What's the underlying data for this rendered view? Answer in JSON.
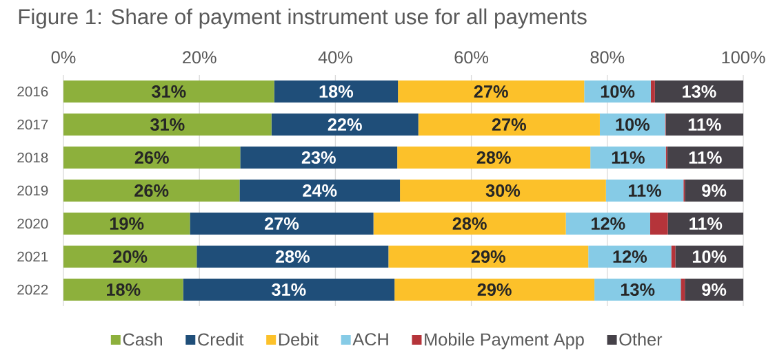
{
  "chart_data": {
    "type": "bar",
    "orientation": "horizontal",
    "stacked": true,
    "title": "Figure 1: Share of payment instrument use for all payments",
    "categories": [
      "2016",
      "2017",
      "2018",
      "2019",
      "2020",
      "2021",
      "2022"
    ],
    "series": [
      {
        "name": "Cash",
        "color": "#8DB03C",
        "values": [
          31.0,
          30.6,
          26.0,
          25.9,
          18.6,
          19.6,
          17.6
        ],
        "value_labels": [
          "31%",
          "31%",
          "26%",
          "26%",
          "19%",
          "20%",
          "18%"
        ]
      },
      {
        "name": "Credit",
        "color": "#1F4E79",
        "values": [
          18.2,
          21.6,
          23.1,
          23.6,
          27.0,
          28.2,
          31.1
        ],
        "value_labels": [
          "18%",
          "22%",
          "23%",
          "24%",
          "27%",
          "28%",
          "31%"
        ]
      },
      {
        "name": "Debit",
        "color": "#FCC12A",
        "values": [
          27.4,
          26.7,
          28.4,
          30.3,
          28.3,
          29.4,
          29.4
        ],
        "value_labels": [
          "27%",
          "27%",
          "28%",
          "30%",
          "28%",
          "29%",
          "29%"
        ]
      },
      {
        "name": "ACH",
        "color": "#86CBE6",
        "values": [
          9.8,
          9.6,
          11.1,
          11.4,
          12.4,
          12.2,
          12.7
        ],
        "value_labels": [
          "10%",
          "10%",
          "11%",
          "11%",
          "12%",
          "12%",
          "13%"
        ]
      },
      {
        "name": "Mobile Payment App",
        "color": "#B5343A",
        "values": [
          0.6,
          0.1,
          0.2,
          0.2,
          2.6,
          0.6,
          0.6
        ]
      },
      {
        "name": "Other",
        "color": "#454148",
        "values": [
          13.0,
          11.4,
          11.2,
          8.6,
          11.1,
          10.0,
          8.6
        ],
        "value_labels": [
          "13%",
          "11%",
          "11%",
          "9%",
          "11%",
          "10%",
          "9%"
        ]
      }
    ],
    "xlim": [
      0,
      100
    ],
    "xticks": [
      {
        "value": 0,
        "label": "0%"
      },
      {
        "value": 20,
        "label": "20%"
      },
      {
        "value": 40,
        "label": "40%"
      },
      {
        "value": 60,
        "label": "60%"
      },
      {
        "value": 80,
        "label": "80%"
      },
      {
        "value": 100,
        "label": "100%"
      }
    ],
    "grid": "x",
    "legend": "bottom"
  }
}
